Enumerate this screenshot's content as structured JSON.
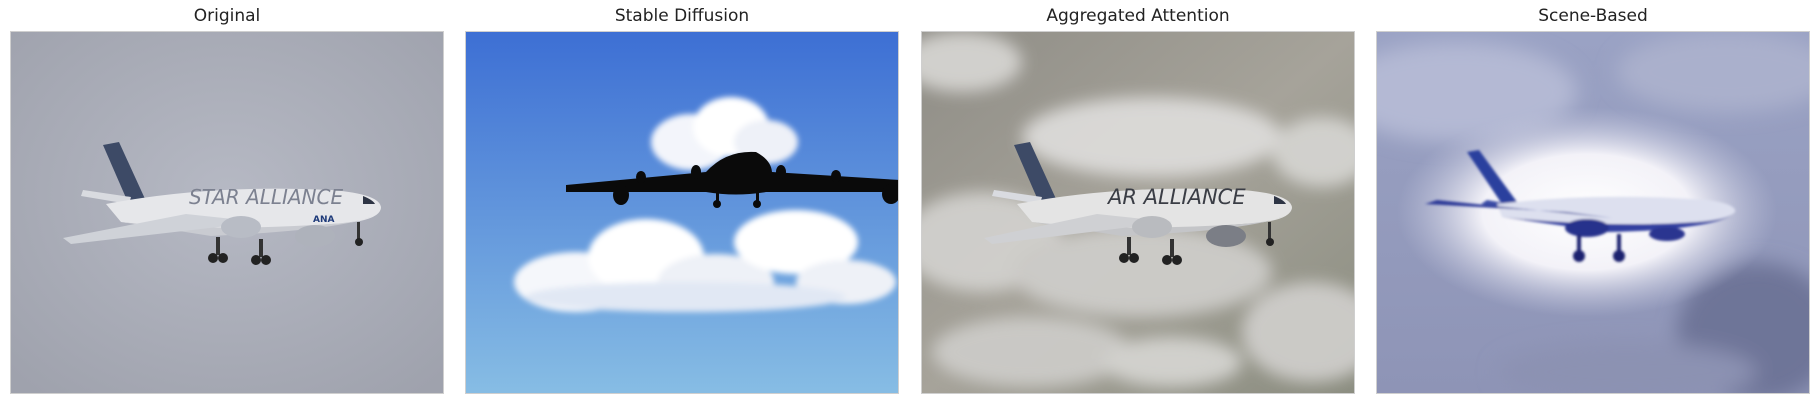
{
  "panels": [
    {
      "title": "Original",
      "image": "airliner-in-grey-sky-photo"
    },
    {
      "title": "Stable Diffusion",
      "image": "airplane-silhouette-over-clouds"
    },
    {
      "title": "Aggregated Attention",
      "image": "airliner-above-clouds-aerial"
    },
    {
      "title": "Scene-Based",
      "image": "stylized-blue-airplane-in-glow"
    }
  ],
  "livery_text": {
    "original": "STAR ALLIANCE",
    "airline": "ANA",
    "attention": "AR ALLIANCE"
  }
}
